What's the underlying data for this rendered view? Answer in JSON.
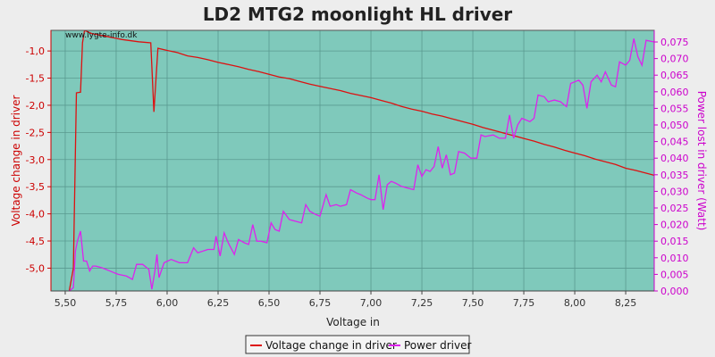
{
  "chart_data": {
    "type": "line",
    "title": "LD2 MTG2 moonlight HL driver",
    "watermark": "www.lygte-info.dk",
    "xlabel": "Voltage in",
    "ylabel_left": "Voltage change in driver",
    "ylabel_right": "Power lost in driver (Watt)",
    "xlim": [
      5.43,
      8.39
    ],
    "ylim_left": [
      -5.42,
      -0.62
    ],
    "ylim_right": [
      0.0,
      0.0785
    ],
    "x_ticks": [
      "5,50",
      "5,75",
      "6,00",
      "6,25",
      "6,50",
      "6,75",
      "7,00",
      "7,25",
      "7,50",
      "7,75",
      "8,00",
      "8,25"
    ],
    "y_left_ticks": [
      "-1,0",
      "-1,5",
      "-2,0",
      "-2,5",
      "-3,0",
      "-3,5",
      "-4,0",
      "-4,5",
      "-5,0"
    ],
    "y_right_ticks": [
      "0,000",
      "0,005",
      "0,010",
      "0,015",
      "0,020",
      "0,025",
      "0,030",
      "0,035",
      "0,040",
      "0,045",
      "0,050",
      "0,055",
      "0,060",
      "0,065",
      "0,070",
      "0,075"
    ],
    "grid": true,
    "legend_position": "bottom-center",
    "colors": {
      "plot_background": "#7fc9bb",
      "page_background": "#ededed",
      "left_axis": "#cc0000",
      "right_axis": "#cc00cc",
      "voltage_line": "#dd1111",
      "power_line": "#dd22ee"
    },
    "series": [
      {
        "name": "Voltage change in driver",
        "axis": "left",
        "points": [
          [
            5.52,
            -5.42
          ],
          [
            5.54,
            -5.0
          ],
          [
            5.555,
            -1.77
          ],
          [
            5.575,
            -1.76
          ],
          [
            5.585,
            -0.85
          ],
          [
            5.595,
            -0.62
          ],
          [
            5.63,
            -0.68
          ],
          [
            5.7,
            -0.73
          ],
          [
            5.78,
            -0.79
          ],
          [
            5.86,
            -0.83
          ],
          [
            5.92,
            -0.85
          ],
          [
            5.935,
            -2.12
          ],
          [
            5.955,
            -0.95
          ],
          [
            6.0,
            -0.99
          ],
          [
            6.05,
            -1.03
          ],
          [
            6.1,
            -1.09
          ],
          [
            6.15,
            -1.12
          ],
          [
            6.2,
            -1.16
          ],
          [
            6.25,
            -1.21
          ],
          [
            6.3,
            -1.25
          ],
          [
            6.35,
            -1.29
          ],
          [
            6.4,
            -1.34
          ],
          [
            6.45,
            -1.38
          ],
          [
            6.5,
            -1.43
          ],
          [
            6.55,
            -1.48
          ],
          [
            6.6,
            -1.51
          ],
          [
            6.65,
            -1.56
          ],
          [
            6.7,
            -1.61
          ],
          [
            6.75,
            -1.65
          ],
          [
            6.8,
            -1.69
          ],
          [
            6.85,
            -1.73
          ],
          [
            6.9,
            -1.78
          ],
          [
            6.95,
            -1.82
          ],
          [
            7.0,
            -1.86
          ],
          [
            7.05,
            -1.91
          ],
          [
            7.1,
            -1.96
          ],
          [
            7.15,
            -2.02
          ],
          [
            7.2,
            -2.07
          ],
          [
            7.25,
            -2.11
          ],
          [
            7.3,
            -2.16
          ],
          [
            7.35,
            -2.2
          ],
          [
            7.4,
            -2.25
          ],
          [
            7.45,
            -2.3
          ],
          [
            7.5,
            -2.35
          ],
          [
            7.55,
            -2.41
          ],
          [
            7.6,
            -2.46
          ],
          [
            7.65,
            -2.51
          ],
          [
            7.7,
            -2.56
          ],
          [
            7.75,
            -2.61
          ],
          [
            7.8,
            -2.66
          ],
          [
            7.85,
            -2.72
          ],
          [
            7.9,
            -2.77
          ],
          [
            7.95,
            -2.83
          ],
          [
            8.0,
            -2.88
          ],
          [
            8.05,
            -2.93
          ],
          [
            8.1,
            -2.99
          ],
          [
            8.15,
            -3.04
          ],
          [
            8.2,
            -3.09
          ],
          [
            8.25,
            -3.16
          ],
          [
            8.3,
            -3.2
          ],
          [
            8.35,
            -3.25
          ],
          [
            8.39,
            -3.29
          ]
        ]
      },
      {
        "name": "Power driver",
        "axis": "right",
        "points": [
          [
            5.52,
            0.0
          ],
          [
            5.54,
            0.001
          ],
          [
            5.55,
            0.012
          ],
          [
            5.56,
            0.015
          ],
          [
            5.575,
            0.018
          ],
          [
            5.59,
            0.009
          ],
          [
            5.605,
            0.009
          ],
          [
            5.62,
            0.006
          ],
          [
            5.635,
            0.0075
          ],
          [
            5.65,
            0.0075
          ],
          [
            5.68,
            0.007
          ],
          [
            5.72,
            0.006
          ],
          [
            5.76,
            0.005
          ],
          [
            5.8,
            0.0045
          ],
          [
            5.83,
            0.0035
          ],
          [
            5.85,
            0.008
          ],
          [
            5.88,
            0.008
          ],
          [
            5.91,
            0.0065
          ],
          [
            5.925,
            0.0005
          ],
          [
            5.94,
            0.006
          ],
          [
            5.95,
            0.011
          ],
          [
            5.96,
            0.004
          ],
          [
            5.985,
            0.0085
          ],
          [
            6.02,
            0.0095
          ],
          [
            6.06,
            0.0085
          ],
          [
            6.1,
            0.0085
          ],
          [
            6.13,
            0.013
          ],
          [
            6.15,
            0.0115
          ],
          [
            6.2,
            0.0125
          ],
          [
            6.23,
            0.0125
          ],
          [
            6.24,
            0.0165
          ],
          [
            6.26,
            0.0105
          ],
          [
            6.28,
            0.0175
          ],
          [
            6.3,
            0.0145
          ],
          [
            6.33,
            0.011
          ],
          [
            6.35,
            0.0155
          ],
          [
            6.38,
            0.0145
          ],
          [
            6.4,
            0.014
          ],
          [
            6.42,
            0.02
          ],
          [
            6.44,
            0.015
          ],
          [
            6.46,
            0.015
          ],
          [
            6.49,
            0.0145
          ],
          [
            6.51,
            0.0205
          ],
          [
            6.53,
            0.0185
          ],
          [
            6.55,
            0.018
          ],
          [
            6.57,
            0.024
          ],
          [
            6.6,
            0.0215
          ],
          [
            6.63,
            0.021
          ],
          [
            6.66,
            0.0205
          ],
          [
            6.68,
            0.026
          ],
          [
            6.7,
            0.024
          ],
          [
            6.73,
            0.023
          ],
          [
            6.75,
            0.0225
          ],
          [
            6.78,
            0.029
          ],
          [
            6.8,
            0.0255
          ],
          [
            6.83,
            0.026
          ],
          [
            6.85,
            0.0255
          ],
          [
            6.88,
            0.026
          ],
          [
            6.9,
            0.0305
          ],
          [
            6.93,
            0.0295
          ],
          [
            6.95,
            0.029
          ],
          [
            6.98,
            0.028
          ],
          [
            7.0,
            0.0275
          ],
          [
            7.02,
            0.0275
          ],
          [
            7.04,
            0.035
          ],
          [
            7.06,
            0.0245
          ],
          [
            7.08,
            0.032
          ],
          [
            7.1,
            0.033
          ],
          [
            7.12,
            0.0325
          ],
          [
            7.15,
            0.0315
          ],
          [
            7.18,
            0.031
          ],
          [
            7.21,
            0.0305
          ],
          [
            7.23,
            0.038
          ],
          [
            7.25,
            0.0345
          ],
          [
            7.27,
            0.0365
          ],
          [
            7.29,
            0.036
          ],
          [
            7.31,
            0.0375
          ],
          [
            7.33,
            0.0435
          ],
          [
            7.35,
            0.037
          ],
          [
            7.37,
            0.041
          ],
          [
            7.39,
            0.035
          ],
          [
            7.41,
            0.0355
          ],
          [
            7.43,
            0.042
          ],
          [
            7.46,
            0.0415
          ],
          [
            7.49,
            0.04
          ],
          [
            7.52,
            0.04
          ],
          [
            7.54,
            0.047
          ],
          [
            7.56,
            0.0465
          ],
          [
            7.6,
            0.047
          ],
          [
            7.63,
            0.046
          ],
          [
            7.66,
            0.046
          ],
          [
            7.68,
            0.053
          ],
          [
            7.7,
            0.046
          ],
          [
            7.72,
            0.05
          ],
          [
            7.74,
            0.052
          ],
          [
            7.76,
            0.0515
          ],
          [
            7.78,
            0.051
          ],
          [
            7.8,
            0.052
          ],
          [
            7.82,
            0.059
          ],
          [
            7.85,
            0.0585
          ],
          [
            7.87,
            0.057
          ],
          [
            7.9,
            0.0575
          ],
          [
            7.93,
            0.057
          ],
          [
            7.96,
            0.0555
          ],
          [
            7.98,
            0.0625
          ],
          [
            8.0,
            0.063
          ],
          [
            8.02,
            0.0635
          ],
          [
            8.04,
            0.062
          ],
          [
            8.06,
            0.055
          ],
          [
            8.08,
            0.063
          ],
          [
            8.11,
            0.065
          ],
          [
            8.13,
            0.063
          ],
          [
            8.15,
            0.066
          ],
          [
            8.18,
            0.062
          ],
          [
            8.2,
            0.0615
          ],
          [
            8.22,
            0.069
          ],
          [
            8.25,
            0.068
          ],
          [
            8.27,
            0.0695
          ],
          [
            8.29,
            0.076
          ],
          [
            8.31,
            0.0705
          ],
          [
            8.33,
            0.068
          ],
          [
            8.35,
            0.0755
          ],
          [
            8.39,
            0.075
          ]
        ]
      }
    ]
  }
}
